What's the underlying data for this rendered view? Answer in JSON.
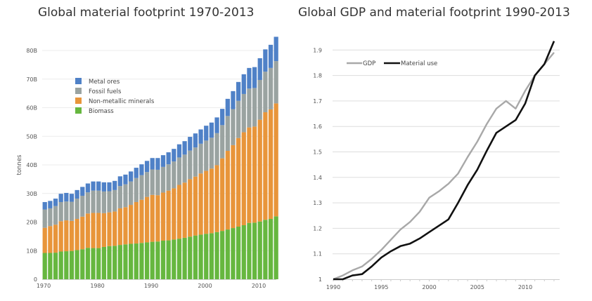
{
  "chart_data": [
    {
      "type": "bar",
      "stacked": true,
      "title": "Global material footprint 1970-2013",
      "xlabel": "",
      "ylabel": "tonnes",
      "ylim": [
        0,
        84
      ],
      "yticks": [
        0,
        10,
        20,
        30,
        40,
        50,
        60,
        70,
        80
      ],
      "ytick_labels": [
        "0",
        "10B",
        "20B",
        "30B",
        "40B",
        "50B",
        "60B",
        "70B",
        "80B"
      ],
      "xticks": [
        1970,
        1980,
        1990,
        2000,
        2010
      ],
      "xtick_labels": [
        "1970",
        "1980",
        "1990",
        "2000",
        "2010"
      ],
      "grid": true,
      "legend_position": "top-left",
      "unit": "billion tonnes",
      "categories": [
        1970,
        1971,
        1972,
        1973,
        1974,
        1975,
        1976,
        1977,
        1978,
        1979,
        1980,
        1981,
        1982,
        1983,
        1984,
        1985,
        1986,
        1987,
        1988,
        1989,
        1990,
        1991,
        1992,
        1993,
        1994,
        1995,
        1996,
        1997,
        1998,
        1999,
        2000,
        2001,
        2002,
        2003,
        2004,
        2005,
        2006,
        2007,
        2008,
        2009,
        2010,
        2011,
        2012,
        2013
      ],
      "series": [
        {
          "name": "Biomass",
          "color": "#66b73f",
          "values": [
            9.2,
            9.2,
            9.3,
            9.7,
            9.8,
            9.9,
            10.2,
            10.5,
            11.0,
            10.9,
            10.9,
            11.3,
            11.6,
            11.7,
            12.0,
            12.2,
            12.4,
            12.5,
            12.7,
            12.9,
            13.1,
            13.2,
            13.5,
            13.6,
            13.9,
            14.2,
            14.5,
            14.9,
            15.3,
            15.6,
            15.9,
            16.1,
            16.5,
            16.9,
            17.4,
            17.9,
            18.4,
            18.9,
            19.7,
            19.8,
            20.2,
            20.8,
            21.1,
            22.0
          ]
        },
        {
          "name": "Non-metallic minerals",
          "color": "#e8953a",
          "values": [
            8.8,
            9.4,
            9.8,
            10.6,
            10.8,
            10.5,
            10.9,
            11.4,
            12.0,
            12.3,
            12.3,
            11.8,
            11.8,
            12.0,
            12.8,
            13.0,
            13.6,
            14.5,
            15.1,
            15.9,
            16.4,
            16.2,
            16.8,
            17.4,
            17.9,
            18.8,
            19.3,
            20.1,
            20.6,
            21.4,
            22.0,
            22.6,
            23.4,
            25.4,
            27.5,
            29.0,
            31.0,
            32.5,
            33.4,
            33.6,
            35.6,
            37.6,
            38.3,
            39.5
          ]
        },
        {
          "name": "Fossil fuels",
          "color": "#9aa3a1",
          "values": [
            6.4,
            6.2,
            6.5,
            6.7,
            6.6,
            6.7,
            7.1,
            7.3,
            7.4,
            7.8,
            7.8,
            7.6,
            7.4,
            7.5,
            7.8,
            8.0,
            8.2,
            8.4,
            8.6,
            8.7,
            8.9,
            8.9,
            9.0,
            9.2,
            9.4,
            9.6,
            9.8,
            10.0,
            10.2,
            10.4,
            10.6,
            10.8,
            11.2,
            11.6,
            12.2,
            12.6,
            13.0,
            13.4,
            13.6,
            13.5,
            13.9,
            14.2,
            14.5,
            14.8
          ]
        },
        {
          "name": "Metal ores",
          "color": "#4f81c7",
          "values": [
            2.6,
            2.6,
            2.6,
            2.9,
            3.0,
            2.8,
            3.0,
            3.1,
            3.1,
            3.2,
            3.2,
            3.2,
            3.1,
            3.2,
            3.4,
            3.4,
            3.5,
            3.6,
            3.8,
            3.9,
            4.0,
            4.1,
            4.1,
            4.2,
            4.4,
            4.6,
            4.7,
            4.8,
            4.9,
            5.0,
            5.2,
            5.3,
            5.5,
            5.7,
            6.0,
            6.3,
            6.6,
            6.9,
            7.2,
            7.3,
            7.6,
            7.8,
            8.1,
            8.5
          ]
        }
      ]
    },
    {
      "type": "line",
      "title": "Global GDP and material footprint 1990-2013",
      "xlabel": "",
      "ylabel": "",
      "xlim": [
        1990,
        2013
      ],
      "ylim": [
        1,
        1.93
      ],
      "yticks": [
        1,
        1.1,
        1.2,
        1.3,
        1.4,
        1.5,
        1.6,
        1.7,
        1.8,
        1.9
      ],
      "ytick_labels": [
        "1",
        "1.1",
        "1.2",
        "1.3",
        "1.4",
        "1.5",
        "1.6",
        "1.7",
        "1.8",
        "1.9"
      ],
      "xticks": [
        1990,
        1995,
        2000,
        2005,
        2010
      ],
      "xtick_labels": [
        "1990",
        "1995",
        "2000",
        "2005",
        "2010"
      ],
      "grid": true,
      "legend_position": "top-left",
      "x": [
        1990,
        1991,
        1992,
        1993,
        1994,
        1995,
        1996,
        1997,
        1998,
        1999,
        2000,
        2001,
        2002,
        2003,
        2004,
        2005,
        2006,
        2007,
        2008,
        2009,
        2010,
        2011,
        2012,
        2013
      ],
      "series": [
        {
          "name": "GDP",
          "color": "#a8a8a8",
          "values": [
            1.0,
            1.015,
            1.035,
            1.05,
            1.08,
            1.115,
            1.155,
            1.195,
            1.225,
            1.265,
            1.32,
            1.345,
            1.375,
            1.415,
            1.48,
            1.54,
            1.61,
            1.67,
            1.7,
            1.67,
            1.74,
            1.8,
            1.845,
            1.89
          ]
        },
        {
          "name": "Material use",
          "color": "#111111",
          "values": [
            1.0,
            1.0,
            1.015,
            1.02,
            1.05,
            1.085,
            1.11,
            1.13,
            1.14,
            1.16,
            1.185,
            1.21,
            1.235,
            1.3,
            1.37,
            1.43,
            1.505,
            1.575,
            1.6,
            1.625,
            1.69,
            1.8,
            1.845,
            1.935
          ]
        }
      ]
    }
  ]
}
